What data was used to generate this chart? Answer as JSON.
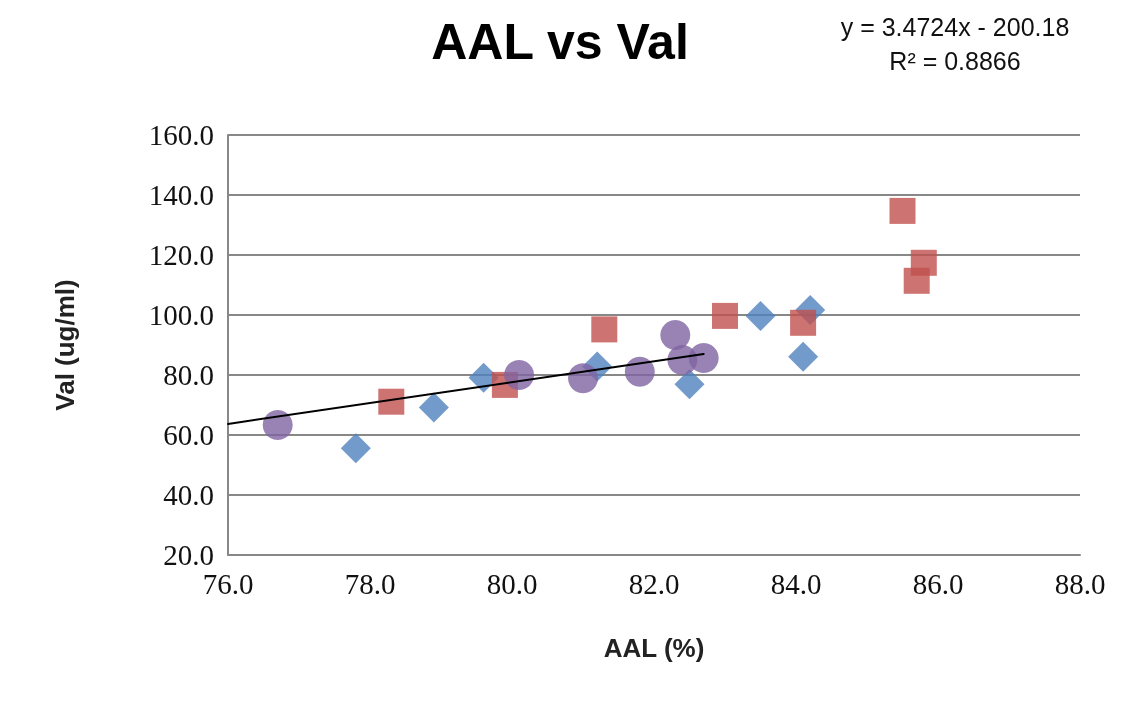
{
  "chart_data": {
    "type": "scatter",
    "title": "AAL vs Val",
    "xlabel": "AAL (%)",
    "ylabel": "Val (ug/ml)",
    "annotations": [
      "y = 3.4724x - 200.18",
      "R² = 0.8866"
    ],
    "xlim": [
      76,
      88
    ],
    "xticks": [
      {
        "value": 76,
        "label": "76.0"
      },
      {
        "value": 78,
        "label": "78.0"
      },
      {
        "value": 80,
        "label": "80.0"
      },
      {
        "value": 82,
        "label": "82.0"
      },
      {
        "value": 84,
        "label": "84.0"
      },
      {
        "value": 86,
        "label": "86.0"
      },
      {
        "value": 88,
        "label": "88.0"
      }
    ],
    "ylim": [
      20,
      160
    ],
    "yticks": [
      {
        "value": 20,
        "label": "20.0"
      },
      {
        "value": 40,
        "label": "40.0"
      },
      {
        "value": 60,
        "label": "60.0"
      },
      {
        "value": 80,
        "label": "80.0"
      },
      {
        "value": 100,
        "label": "100.0"
      },
      {
        "value": 120,
        "label": "120.0"
      },
      {
        "value": 140,
        "label": "140.0"
      },
      {
        "value": 160,
        "label": "160.0"
      }
    ],
    "grid": "y",
    "series": [
      {
        "color": "#4f81bd",
        "marker": "diamond",
        "x": [
          77.8,
          78.9,
          79.6,
          81.2,
          82.5,
          83.5,
          84.1,
          84.2
        ],
        "values": [
          55.6,
          69.2,
          79.1,
          82.8,
          76.9,
          99.7,
          86.1,
          101.7
        ]
      },
      {
        "color": "#c0504d",
        "marker": "square",
        "x": [
          78.3,
          79.9,
          81.3,
          83.0,
          84.1,
          85.5,
          85.8,
          85.7
        ],
        "values": [
          71.1,
          76.7,
          95.2,
          99.7,
          97.4,
          134.7,
          117.4,
          111.4
        ]
      },
      {
        "color": "#8064a2",
        "marker": "circle",
        "x": [
          76.7,
          80.1,
          81.0,
          81.8,
          82.3,
          82.4,
          82.7
        ],
        "values": [
          63.3,
          80.0,
          78.9,
          81.1,
          93.3,
          85.0,
          85.7
        ]
      },
      {
        "type": "line",
        "color": "#000000",
        "marker": "none",
        "line_style": "solid",
        "x": [
          76.0,
          82.7
        ],
        "values": [
          63.7,
          87.0
        ]
      }
    ]
  }
}
